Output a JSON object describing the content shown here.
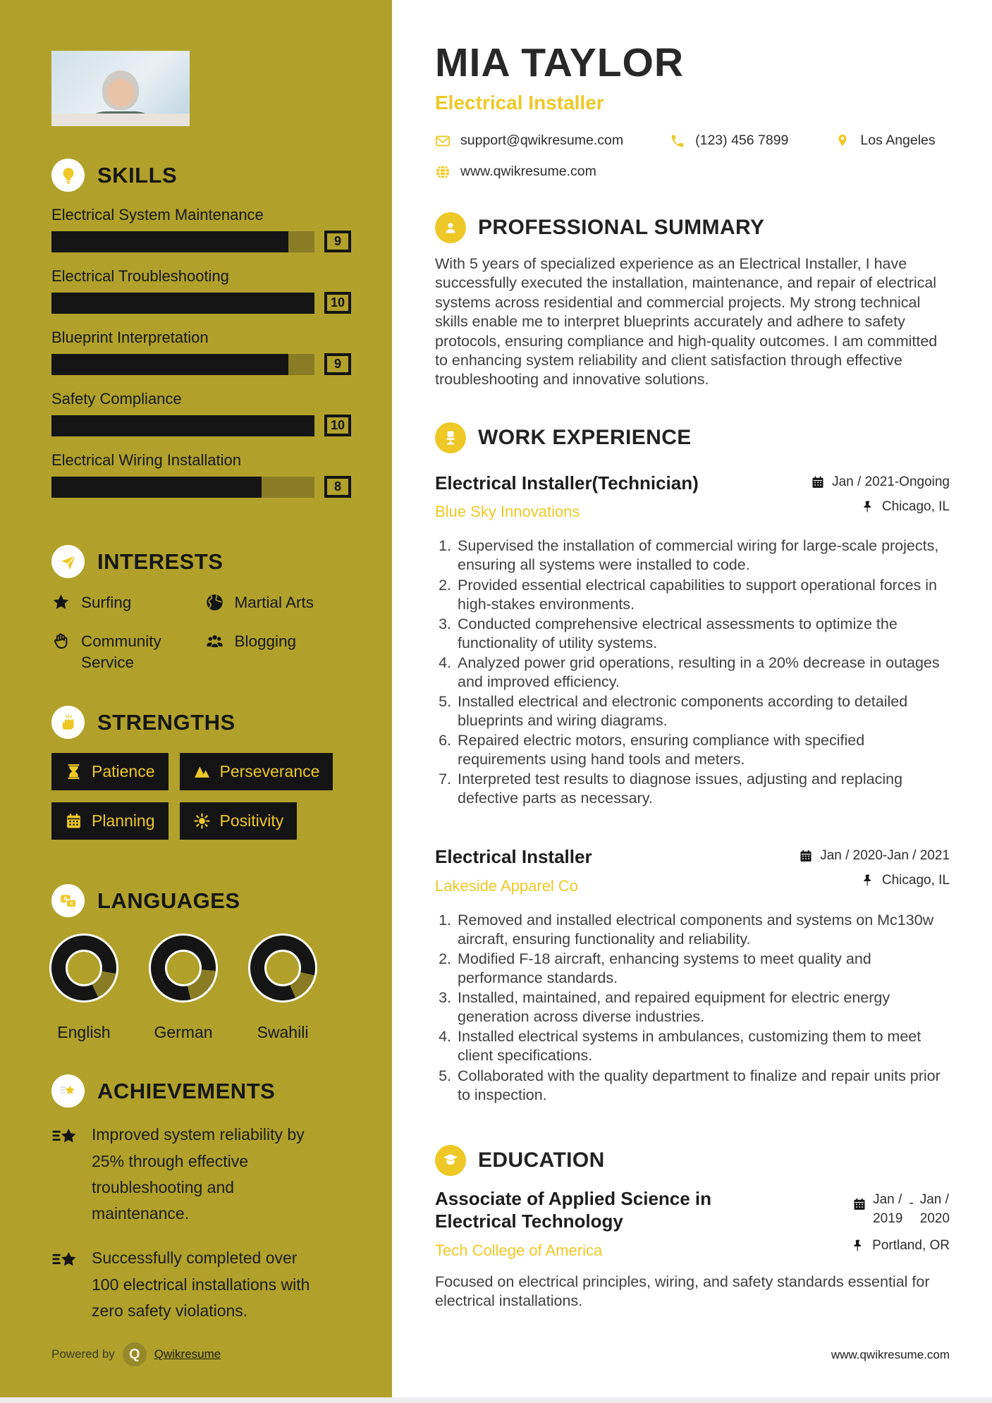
{
  "colors": {
    "sidebar_bg": "#b1a12b",
    "accent_yellow": "#eec826",
    "bar_black": "#141414",
    "bar_track_olive": "#8a7c24"
  },
  "header": {
    "name": "MIA TAYLOR",
    "title": "Electrical Installer",
    "email": "support@qwikresume.com",
    "phone": "(123) 456 7899",
    "location": "Los Angeles",
    "website": "www.qwikresume.com"
  },
  "sidebar": {
    "skills": {
      "title": "SKILLS",
      "items": [
        {
          "name": "Electrical System Maintenance",
          "value": 9
        },
        {
          "name": "Electrical Troubleshooting",
          "value": 10
        },
        {
          "name": "Blueprint Interpretation",
          "value": 9
        },
        {
          "name": "Safety Compliance",
          "value": 10
        },
        {
          "name": "Electrical Wiring Installation",
          "value": 8
        }
      ]
    },
    "interests": {
      "title": "INTERESTS",
      "items": [
        {
          "label": "Surfing",
          "icon": "star-icon"
        },
        {
          "label": "Martial Arts",
          "icon": "globe-icon"
        },
        {
          "label": "Community Service",
          "icon": "hand-icon"
        },
        {
          "label": "Blogging",
          "icon": "users-icon"
        }
      ]
    },
    "strengths": {
      "title": "STRENGTHS",
      "items": [
        {
          "label": "Patience",
          "icon": "hourglass-icon"
        },
        {
          "label": "Perseverance",
          "icon": "mountains-icon"
        },
        {
          "label": "Planning",
          "icon": "calendar-icon"
        },
        {
          "label": "Positivity",
          "icon": "sun-icon"
        }
      ]
    },
    "languages": {
      "title": "LANGUAGES",
      "items": [
        {
          "name": "English",
          "level_percent": 85,
          "gap_start_deg": 100
        },
        {
          "name": "German",
          "level_percent": 80,
          "gap_start_deg": 95
        },
        {
          "name": "Swahili",
          "level_percent": 85,
          "gap_start_deg": 103
        }
      ]
    },
    "achievements": {
      "title": "ACHIEVEMENTS",
      "items": [
        {
          "text": "Improved system reliability by 25% through effective troubleshooting and maintenance."
        },
        {
          "text": "Successfully completed over 100 electrical installations with zero safety violations."
        }
      ]
    },
    "footer": {
      "powered_by": "Powered by",
      "logo_letter": "Q",
      "brand": "Qwikresume"
    }
  },
  "summary": {
    "title": "PROFESSIONAL SUMMARY",
    "text": "With 5 years of specialized experience as an Electrical Installer, I have successfully executed the installation, maintenance, and repair of electrical systems across residential and commercial projects. My strong technical skills enable me to interpret blueprints accurately and adhere to safety protocols, ensuring compliance and high-quality outcomes. I am committed to enhancing system reliability and client satisfaction through effective troubleshooting and innovative solutions."
  },
  "experience": {
    "title": "WORK EXPERIENCE",
    "jobs": [
      {
        "role": "Electrical Installer(Technician)",
        "company": "Blue Sky Innovations",
        "dates": "Jan / 2021-Ongoing",
        "location": "Chicago, IL",
        "bullets": [
          "Supervised the installation of commercial wiring for large-scale projects, ensuring all systems were installed to code.",
          "Provided essential electrical capabilities to support operational forces in high-stakes environments.",
          "Conducted comprehensive electrical assessments to optimize the functionality of utility systems.",
          "Analyzed power grid operations, resulting in a 20% decrease in outages and improved efficiency.",
          "Installed electrical and electronic components according to detailed blueprints and wiring diagrams.",
          "Repaired electric motors, ensuring compliance with specified requirements using hand tools and meters.",
          "Interpreted test results to diagnose issues, adjusting and replacing defective parts as necessary."
        ]
      },
      {
        "role": "Electrical Installer",
        "company": "Lakeside Apparel Co",
        "dates": "Jan / 2020-Jan / 2021",
        "location": "Chicago, IL",
        "bullets": [
          "Removed and installed electrical components and systems on Mc130w aircraft, ensuring functionality and reliability.",
          "Modified F-18 aircraft, enhancing systems to meet quality and performance standards.",
          "Installed, maintained, and repaired equipment for electric energy generation across diverse industries.",
          "Installed electrical systems in ambulances, customizing them to meet client specifications.",
          "Collaborated with the quality department to finalize and repair units prior to inspection."
        ]
      }
    ]
  },
  "education": {
    "title": "EDUCATION",
    "degree": "Associate of Applied Science in Electrical Technology",
    "school": "Tech College of America",
    "date_from_line1": "Jan /",
    "date_from_line2": "2019",
    "date_separator": "-",
    "date_to_line1": "Jan /",
    "date_to_line2": "2020",
    "location": "Portland, OR",
    "description": "Focused on electrical principles, wiring, and safety standards essential for electrical installations."
  },
  "page_footer": {
    "website": "www.qwikresume.com"
  }
}
